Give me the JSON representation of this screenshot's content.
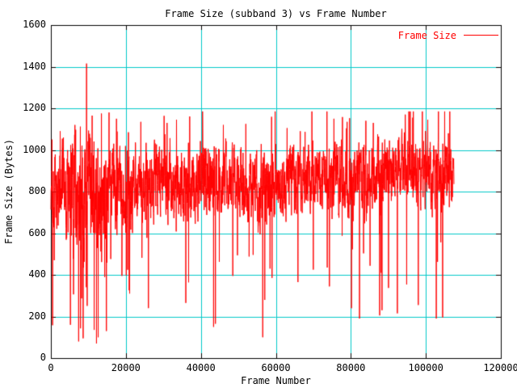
{
  "chart_data": {
    "type": "line",
    "title": "Frame Size (subband 3) vs Frame Number",
    "xlabel": "Frame Number",
    "ylabel": "Frame Size (Bytes)",
    "xlim": [
      0,
      120000
    ],
    "ylim": [
      0,
      1600
    ],
    "x_ticks": [
      0,
      20000,
      40000,
      60000,
      80000,
      100000,
      120000
    ],
    "y_ticks": [
      0,
      200,
      400,
      600,
      800,
      1000,
      1200,
      1400,
      1600
    ],
    "grid": true,
    "grid_color": "#00c8c8",
    "border_color": "#000000",
    "background": "#ffffff",
    "legend_position": "top-right-inside",
    "series": [
      {
        "name": "Frame Size",
        "color": "#ff0000",
        "style": "noisy dense line, one point per frame",
        "gen": {
          "seed": 1337,
          "n_points": 2600,
          "x_start": 0,
          "x_end": 107500,
          "ar": 0.5,
          "noise_scale": 0.9,
          "volatile_until": 16000,
          "dip_prob_early": 0.035,
          "dip_prob": 0.01,
          "dip_depth_early": [
            300,
            920
          ],
          "dip_depth": [
            200,
            620
          ],
          "spike_prob": 0.012,
          "spike_add": [
            180,
            430
          ],
          "clamp": [
            70,
            1185
          ],
          "envelope": [
            [
              0,
              810,
              170
            ],
            [
              4000,
              790,
              200
            ],
            [
              7000,
              760,
              260
            ],
            [
              10000,
              780,
              260
            ],
            [
              13000,
              800,
              240
            ],
            [
              16000,
              820,
              180
            ],
            [
              22000,
              830,
              160
            ],
            [
              30000,
              845,
              150
            ],
            [
              40000,
              850,
              155
            ],
            [
              50000,
              855,
              145
            ],
            [
              56000,
              805,
              165
            ],
            [
              62000,
              840,
              150
            ],
            [
              70000,
              885,
              130
            ],
            [
              78000,
              855,
              150
            ],
            [
              86000,
              870,
              150
            ],
            [
              94000,
              915,
              125
            ],
            [
              100000,
              895,
              135
            ],
            [
              104000,
              855,
              150
            ],
            [
              107500,
              840,
              130
            ]
          ],
          "key_points": [
            [
              300,
              1050
            ],
            [
              900,
              470
            ],
            [
              2500,
              1090
            ],
            [
              5200,
              160
            ],
            [
              6400,
              1120
            ],
            [
              7400,
              80
            ],
            [
              8600,
              95
            ],
            [
              9500,
              1415
            ],
            [
              11000,
              1165
            ],
            [
              12600,
              100
            ],
            [
              13500,
              1175
            ],
            [
              14800,
              130
            ],
            [
              15500,
              1180
            ],
            [
              17500,
              1150
            ],
            [
              21000,
              310
            ],
            [
              24000,
              1135
            ],
            [
              26000,
              240
            ],
            [
              31000,
              1130
            ],
            [
              33500,
              1145
            ],
            [
              36000,
              265
            ],
            [
              40500,
              1105
            ],
            [
              43400,
              150
            ],
            [
              43900,
              165
            ],
            [
              46000,
              1120
            ],
            [
              48500,
              395
            ],
            [
              52000,
              1125
            ],
            [
              56500,
              100
            ],
            [
              59000,
              385
            ],
            [
              63000,
              1105
            ],
            [
              66500,
              1090
            ],
            [
              70000,
              425
            ],
            [
              73700,
              435
            ],
            [
              75500,
              1150
            ],
            [
              79000,
              1135
            ],
            [
              82300,
              190
            ],
            [
              84000,
              1140
            ],
            [
              86000,
              1130
            ],
            [
              87700,
              205
            ],
            [
              88300,
              230
            ],
            [
              92400,
              215
            ],
            [
              94500,
              1170
            ],
            [
              96500,
              1155
            ],
            [
              98000,
              255
            ],
            [
              100500,
              1145
            ],
            [
              102800,
              190
            ],
            [
              104500,
              195
            ],
            [
              106000,
              1080
            ]
          ]
        }
      }
    ]
  }
}
